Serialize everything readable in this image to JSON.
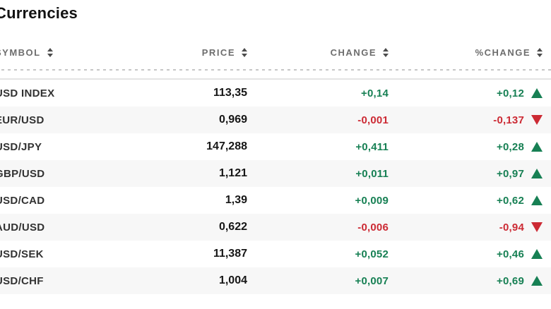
{
  "page": {
    "title": "Currencies"
  },
  "table": {
    "columns": [
      {
        "key": "symbol",
        "label": "SYMBOL",
        "align": "left",
        "sortable": true
      },
      {
        "key": "price",
        "label": "PRICE",
        "align": "right",
        "sortable": true
      },
      {
        "key": "change",
        "label": "CHANGE",
        "align": "right",
        "sortable": true
      },
      {
        "key": "pct_change",
        "label": "%CHANGE",
        "align": "right",
        "sortable": true
      }
    ],
    "rows": [
      {
        "symbol": "USD INDEX",
        "price": "113,35",
        "change": "+0,14",
        "change_dir": "up",
        "pct_change": "+0,12",
        "pct_dir": "up"
      },
      {
        "symbol": "EUR/USD",
        "price": "0,969",
        "change": "-0,001",
        "change_dir": "down",
        "pct_change": "-0,137",
        "pct_dir": "down"
      },
      {
        "symbol": "USD/JPY",
        "price": "147,288",
        "change": "+0,411",
        "change_dir": "up",
        "pct_change": "+0,28",
        "pct_dir": "up"
      },
      {
        "symbol": "GBP/USD",
        "price": "1,121",
        "change": "+0,011",
        "change_dir": "up",
        "pct_change": "+0,97",
        "pct_dir": "up"
      },
      {
        "symbol": "USD/CAD",
        "price": "1,39",
        "change": "+0,009",
        "change_dir": "up",
        "pct_change": "+0,62",
        "pct_dir": "up"
      },
      {
        "symbol": "AUD/USD",
        "price": "0,622",
        "change": "-0,006",
        "change_dir": "down",
        "pct_change": "-0,94",
        "pct_dir": "down"
      },
      {
        "symbol": "USD/SEK",
        "price": "11,387",
        "change": "+0,052",
        "change_dir": "up",
        "pct_change": "+0,46",
        "pct_dir": "up"
      },
      {
        "symbol": "USD/CHF",
        "price": "1,004",
        "change": "+0,007",
        "change_dir": "up",
        "pct_change": "+0,69",
        "pct_dir": "up"
      }
    ]
  },
  "icons": {
    "sort": "sort-arrows-up-down",
    "up_indicator": "up-triangle",
    "down_indicator": "down-triangle"
  },
  "colors": {
    "positive": "#178054",
    "negative": "#cc2a34",
    "row_alt_bg": "#f7f7f7",
    "header_text": "#6d6d6d"
  }
}
